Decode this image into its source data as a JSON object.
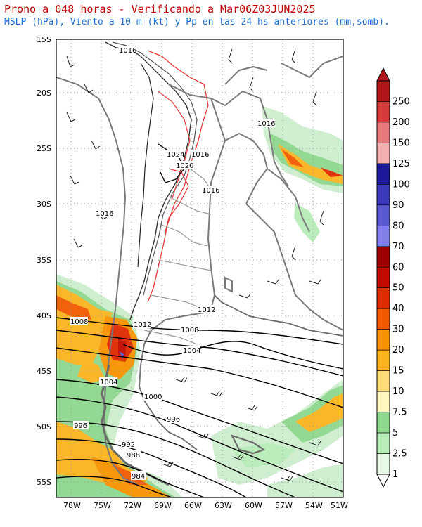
{
  "header": {
    "title": "Prono a 048 horas - Verificando a Mar06Z03JUN2025",
    "subtitle": "MSLP (hPa), Viento a 10 m (kt) y Pp en las 24 hs anteriores (mm,somb)."
  },
  "axes": {
    "lat_labels": [
      "15S",
      "20S",
      "25S",
      "30S",
      "35S",
      "40S",
      "45S",
      "50S",
      "55S"
    ],
    "lon_labels": [
      "78W",
      "75W",
      "72W",
      "69W",
      "66W",
      "63W",
      "60W",
      "57W",
      "54W",
      "51W"
    ]
  },
  "isobars": {
    "labels": [
      "1016",
      "1016",
      "1024",
      "1016",
      "1020",
      "1016",
      "1016",
      "1012",
      "1012",
      "1008",
      "1008",
      "1004",
      "1004",
      "1000",
      "996",
      "996",
      "992",
      "988",
      "984"
    ]
  },
  "colorbar": {
    "labels": [
      "250",
      "200",
      "150",
      "125",
      "100",
      "90",
      "80",
      "70",
      "60",
      "50",
      "40",
      "30",
      "20",
      "15",
      "10",
      "7.5",
      "5",
      "2.5",
      "1"
    ],
    "colors": [
      "#b0171b",
      "#d53a3a",
      "#e6787a",
      "#f4b0b0",
      "#1c1a9a",
      "#3a3ab8",
      "#5a5ad0",
      "#8080e8",
      "#9c0000",
      "#c40a00",
      "#e02a00",
      "#f25a00",
      "#f79200",
      "#fab41e",
      "#ffdc78",
      "#fff6c0",
      "#8ed88e",
      "#b8ecb8",
      "#e6f9e6"
    ]
  }
}
